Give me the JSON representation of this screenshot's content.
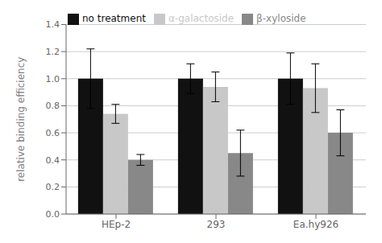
{
  "chart_data": {
    "type": "bar",
    "categories": [
      "HEp-2",
      "293",
      "Ea.hy926"
    ],
    "series": [
      {
        "name": "no treatment",
        "color": "#111111",
        "values": [
          1.0,
          1.0,
          1.0
        ],
        "errors": [
          0.22,
          0.11,
          0.19
        ]
      },
      {
        "name": "α-galactoside",
        "color": "#c8c8c8",
        "values": [
          0.74,
          0.94,
          0.93
        ],
        "errors": [
          0.07,
          0.11,
          0.18
        ]
      },
      {
        "name": "β-xyloside",
        "color": "#888888",
        "values": [
          0.4,
          0.45,
          0.6
        ],
        "errors": [
          0.04,
          0.17,
          0.17
        ]
      }
    ],
    "ylabel": "relative binding efficiency",
    "ylim": [
      0,
      1.4
    ],
    "yticks": [
      {
        "value": 0,
        "label": "0.0"
      },
      0.2,
      0.4,
      0.6,
      0.8,
      {
        "value": 1,
        "label": "1.0"
      },
      1.2,
      1.4
    ],
    "grid": true,
    "legend": "upper left"
  }
}
